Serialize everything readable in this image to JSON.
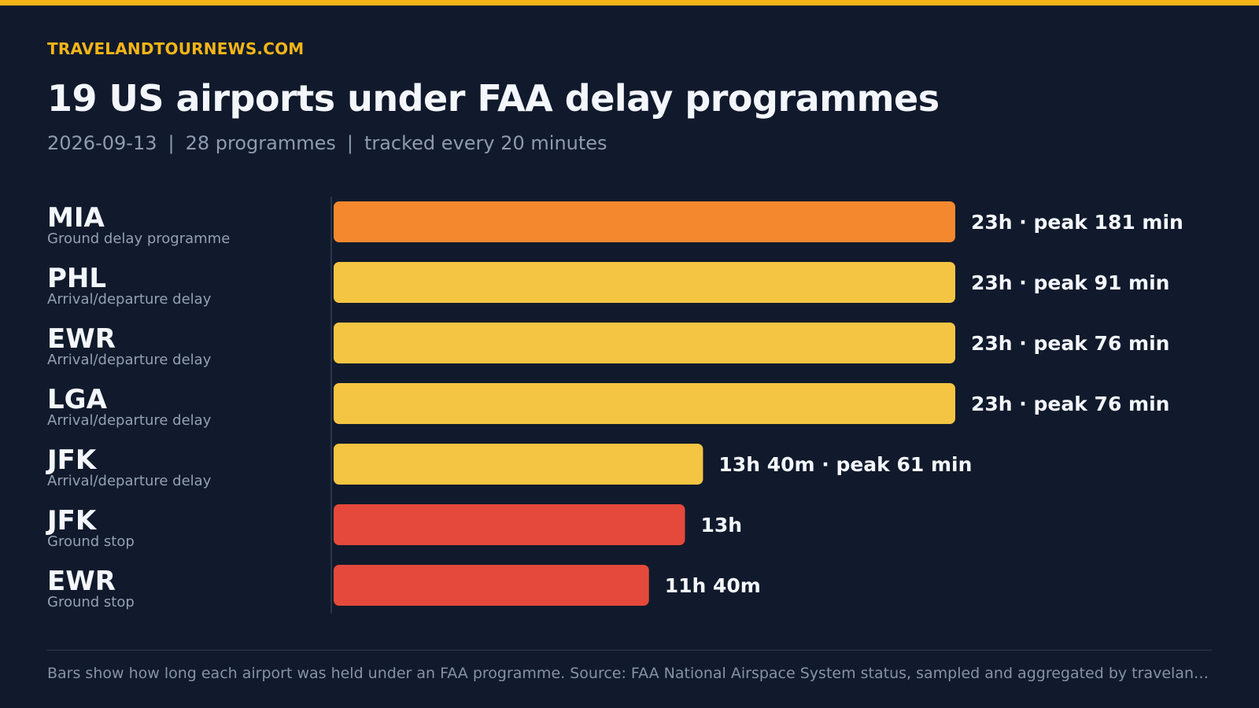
{
  "brand": "TRAVELANDTOURNEWS.COM",
  "title": "19 US airports under FAA delay programmes",
  "subtitle": {
    "date": "2026-09-13",
    "count": "28 programmes",
    "cadence": "tracked every 20 minutes",
    "separator": "|"
  },
  "colors": {
    "background": "#111a2c",
    "accent": "#f6b517",
    "ground_delay_programme": "#f4882e",
    "arrival_departure_delay": "#f4c542",
    "ground_stop": "#e4493b"
  },
  "chart_data": {
    "type": "bar",
    "orientation": "horizontal",
    "unit": "minutes",
    "grid": false,
    "rows": [
      {
        "airport": "MIA",
        "programme": "Ground delay programme",
        "duration_minutes": 1380,
        "value_label": "23h · peak 181 min",
        "color": "#f4882e"
      },
      {
        "airport": "PHL",
        "programme": "Arrival/departure delay",
        "duration_minutes": 1380,
        "value_label": "23h · peak 91 min",
        "color": "#f4c542"
      },
      {
        "airport": "EWR",
        "programme": "Arrival/departure delay",
        "duration_minutes": 1380,
        "value_label": "23h · peak 76 min",
        "color": "#f4c542"
      },
      {
        "airport": "LGA",
        "programme": "Arrival/departure delay",
        "duration_minutes": 1380,
        "value_label": "23h · peak 76 min",
        "color": "#f4c542"
      },
      {
        "airport": "JFK",
        "programme": "Arrival/departure delay",
        "duration_minutes": 820,
        "value_label": "13h 40m · peak 61 min",
        "color": "#f4c542"
      },
      {
        "airport": "JFK",
        "programme": "Ground stop",
        "duration_minutes": 780,
        "value_label": "13h",
        "color": "#e4493b"
      },
      {
        "airport": "EWR",
        "programme": "Ground stop",
        "duration_minutes": 700,
        "value_label": "11h 40m",
        "color": "#e4493b"
      }
    ]
  },
  "footnote": "Bars show how long each airport was held under an FAA programme. Source: FAA National Airspace System status, sampled and aggregated by travelandtour…"
}
